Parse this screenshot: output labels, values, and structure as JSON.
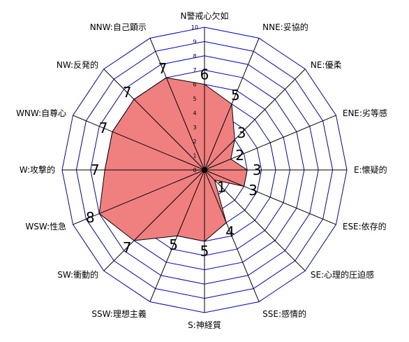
{
  "chart_data": {
    "type": "radar",
    "title": "",
    "axes": [
      "N警戒心欠如",
      "NNE:妥協的",
      "NE:優柔",
      "ENE:劣等感",
      "E:懐疑的",
      "ESE:依存的",
      "SE:心理的圧迫感",
      "SSE:感情的",
      "S:神経質",
      "SSW:理想主義",
      "SW:衝動的",
      "WSW:性急",
      "W:攻撃的",
      "WNW:自尊心",
      "NW:反発的",
      "NNW:自己顕示"
    ],
    "values": [
      6,
      5,
      3,
      2,
      3,
      3,
      1,
      4,
      5,
      5,
      7,
      8,
      7,
      7,
      7,
      7
    ],
    "rlim": [
      0,
      10
    ],
    "rticks": [
      "0",
      "1",
      "2",
      "3",
      "4",
      "5",
      "6",
      "7",
      "8",
      "9",
      "10"
    ],
    "value_labels": [
      "6",
      "5",
      "3",
      "2",
      "3",
      "3",
      "1",
      "4",
      "5",
      "5",
      "7",
      "8",
      "7",
      "7",
      "7",
      "7"
    ],
    "grid": true,
    "colors": {
      "fill": "#f08080",
      "grid": "#0000cc",
      "spoke": "#000000",
      "outline": "#000000"
    }
  }
}
